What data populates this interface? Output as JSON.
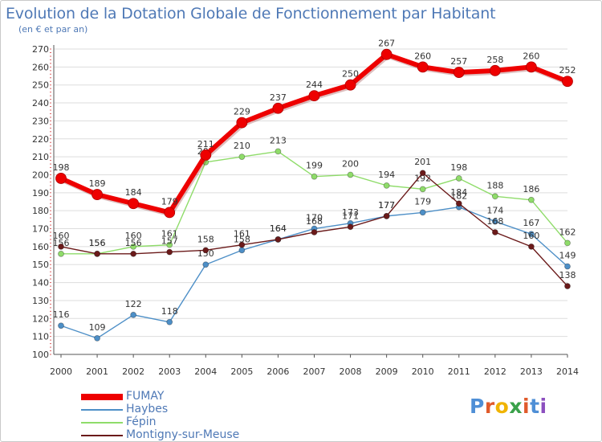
{
  "header": {
    "title": "Evolution de la Dotation Globale de Fonctionnement par Habitant",
    "subtitle": "(en € et par an)"
  },
  "logo": {
    "text": "Proxiti",
    "colors": [
      "#4f8fd6",
      "#e05a2b",
      "#f0b400",
      "#3aa14a",
      "#e05a2b",
      "#4f8fd6",
      "#8c4fbf"
    ]
  },
  "colors": {
    "FUMAY": "#ee0000",
    "Haybes": "#4d8fc7",
    "Fépin": "#8fdc6a",
    "Montigny-sur-Meuse": "#6b1a1a",
    "grid": "#dddddd",
    "axis": "#555555",
    "label": "#333333"
  },
  "chart_data": {
    "type": "line",
    "title": "Evolution de la Dotation Globale de Fonctionnement par Habitant",
    "subtitle": "(en € et par an)",
    "xlabel": "",
    "ylabel": "",
    "x": [
      "2000",
      "2001",
      "2002",
      "2003",
      "2004",
      "2005",
      "2006",
      "2007",
      "2008",
      "2009",
      "2010",
      "2011",
      "2012",
      "2013",
      "2014"
    ],
    "ylim": [
      100,
      270
    ],
    "yticks": [
      100,
      110,
      120,
      130,
      140,
      150,
      160,
      170,
      180,
      190,
      200,
      210,
      220,
      230,
      240,
      250,
      260,
      270
    ],
    "grid": true,
    "legend_position": "bottom-left",
    "series": [
      {
        "name": "FUMAY",
        "values": [
          198,
          189,
          184,
          179,
          211,
          229,
          237,
          244,
          250,
          267,
          260,
          257,
          258,
          260,
          252
        ],
        "labels": [
          "198",
          "189",
          "184",
          "179",
          "211",
          "229",
          "237",
          "244",
          "250",
          "267",
          "260",
          "257",
          "258",
          "260",
          "252"
        ]
      },
      {
        "name": "Haybes",
        "values": [
          116,
          109,
          122,
          118,
          150,
          158,
          164,
          170,
          173,
          177,
          179,
          182,
          174,
          167,
          149
        ],
        "labels": [
          "116",
          "109",
          "122",
          "118",
          "150",
          "158",
          "164",
          "170",
          "173",
          "177",
          "179",
          "182",
          "174",
          "167",
          "149"
        ]
      },
      {
        "name": "Fépin",
        "values": [
          156,
          156,
          160,
          161,
          207,
          210,
          213,
          199,
          200,
          194,
          192,
          198,
          188,
          186,
          162
        ],
        "labels": [
          "156",
          "156",
          "160",
          "161",
          "207",
          "210",
          "213",
          "199",
          "200",
          "194",
          "192",
          "198",
          "188",
          "186",
          "162"
        ]
      },
      {
        "name": "Montigny-sur-Meuse",
        "values": [
          160,
          156,
          156,
          157,
          158,
          161,
          164,
          168,
          171,
          177,
          201,
          184,
          168,
          160,
          138
        ],
        "labels": [
          "160",
          "156",
          "156",
          "157",
          "158",
          "161",
          "164",
          "168",
          "171",
          "177",
          "201",
          "184",
          "168",
          "160",
          "138"
        ]
      }
    ]
  }
}
